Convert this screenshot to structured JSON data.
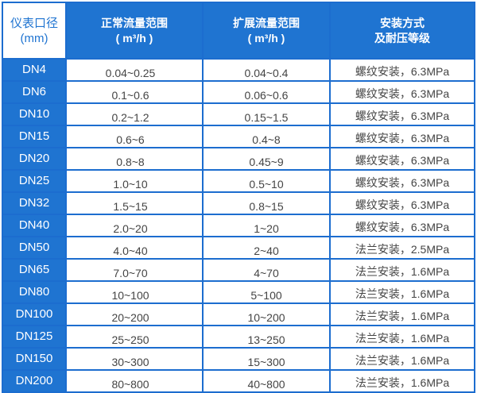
{
  "headers": {
    "size": [
      "仪表口径",
      "(mm)"
    ],
    "normal": [
      "正常流量范围",
      "( m³/h )"
    ],
    "extended": [
      "扩展流量范围",
      "( m³/h )"
    ],
    "install": [
      "安装方式",
      "及耐压等级"
    ]
  },
  "rows": [
    [
      "DN4",
      "0.04~0.25",
      "0.04~0.4",
      "螺纹安装，6.3MPa"
    ],
    [
      "DN6",
      "0.1~0.6",
      "0.06~0.6",
      "螺纹安装，6.3MPa"
    ],
    [
      "DN10",
      "0.2~1.2",
      "0.15~1.5",
      "螺纹安装，6.3MPa"
    ],
    [
      "DN15",
      "0.6~6",
      "0.4~8",
      "螺纹安装，6.3MPa"
    ],
    [
      "DN20",
      "0.8~8",
      "0.45~9",
      "螺纹安装，6.3MPa"
    ],
    [
      "DN25",
      "1.0~10",
      "0.5~10",
      "螺纹安装，6.3MPa"
    ],
    [
      "DN32",
      "1.5~15",
      "0.8~15",
      "螺纹安装，6.3MPa"
    ],
    [
      "DN40",
      "2.0~20",
      "1~20",
      "螺纹安装，6.3MPa"
    ],
    [
      "DN50",
      "4.0~40",
      "2~40",
      "法兰安装，2.5MPa"
    ],
    [
      "DN65",
      "7.0~70",
      "4~70",
      "法兰安装，1.6MPa"
    ],
    [
      "DN80",
      "10~100",
      "5~100",
      "法兰安装，1.6MPa"
    ],
    [
      "DN100",
      "20~200",
      "10~200",
      "法兰安装，1.6MPa"
    ],
    [
      "DN125",
      "25~250",
      "13~250",
      "法兰安装，1.6MPa"
    ],
    [
      "DN150",
      "30~300",
      "15~300",
      "法兰安装，1.6MPa"
    ],
    [
      "DN200",
      "80~800",
      "40~800",
      "法兰安装，1.6MPa"
    ]
  ]
}
